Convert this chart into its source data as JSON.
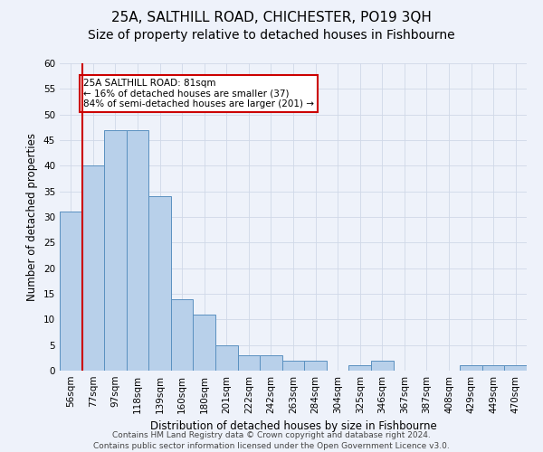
{
  "title1": "25A, SALTHILL ROAD, CHICHESTER, PO19 3QH",
  "title2": "Size of property relative to detached houses in Fishbourne",
  "xlabel": "Distribution of detached houses by size in Fishbourne",
  "ylabel": "Number of detached properties",
  "footer1": "Contains HM Land Registry data © Crown copyright and database right 2024.",
  "footer2": "Contains public sector information licensed under the Open Government Licence v3.0.",
  "bin_labels": [
    "56sqm",
    "77sqm",
    "97sqm",
    "118sqm",
    "139sqm",
    "160sqm",
    "180sqm",
    "201sqm",
    "222sqm",
    "242sqm",
    "263sqm",
    "284sqm",
    "304sqm",
    "325sqm",
    "346sqm",
    "367sqm",
    "387sqm",
    "408sqm",
    "429sqm",
    "449sqm",
    "470sqm"
  ],
  "bar_values": [
    31,
    40,
    47,
    47,
    34,
    14,
    11,
    5,
    3,
    3,
    2,
    2,
    0,
    1,
    2,
    0,
    0,
    0,
    1,
    1,
    1
  ],
  "bar_color": "#b8d0ea",
  "bar_edge_color": "#5a90c0",
  "highlight_bin_index": 1,
  "highlight_color": "#cc0000",
  "annotation_text": "25A SALTHILL ROAD: 81sqm\n← 16% of detached houses are smaller (37)\n84% of semi-detached houses are larger (201) →",
  "annotation_box_color": "#ffffff",
  "annotation_box_edge": "#cc0000",
  "ylim": [
    0,
    60
  ],
  "yticks": [
    0,
    5,
    10,
    15,
    20,
    25,
    30,
    35,
    40,
    45,
    50,
    55,
    60
  ],
  "grid_color": "#d0d8e8",
  "bg_color": "#eef2fa",
  "title1_fontsize": 11,
  "title2_fontsize": 10,
  "axis_label_fontsize": 8.5,
  "tick_fontsize": 7.5,
  "footer_fontsize": 6.5,
  "annot_fontsize": 7.5
}
